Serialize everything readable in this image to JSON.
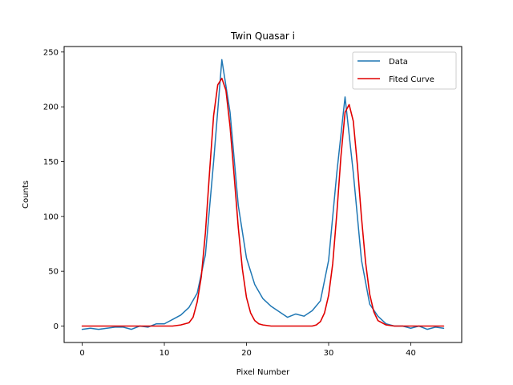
{
  "chart_data": {
    "type": "line",
    "title": "Twin Quasar i",
    "xlabel": "Pixel Number",
    "ylabel": "Counts",
    "xlim": [
      -2.2,
      46.2
    ],
    "ylim": [
      -15,
      255
    ],
    "xticks": [
      0,
      10,
      20,
      30,
      40
    ],
    "yticks": [
      0,
      50,
      100,
      150,
      200,
      250
    ],
    "legend_position": "top-right",
    "grid": false,
    "series": [
      {
        "name": "Data",
        "color": "#1f77b4",
        "x": [
          0,
          1,
          2,
          3,
          4,
          5,
          6,
          7,
          8,
          9,
          10,
          11,
          12,
          13,
          14,
          15,
          16,
          17,
          18,
          19,
          20,
          21,
          22,
          23,
          24,
          25,
          26,
          27,
          28,
          29,
          30,
          31,
          32,
          33,
          34,
          35,
          36,
          37,
          38,
          39,
          40,
          41,
          42,
          43,
          44
        ],
        "y": [
          -3,
          -2,
          -3,
          -2,
          -1,
          -1,
          -3,
          0,
          -1,
          2,
          2,
          6,
          10,
          17,
          30,
          65,
          150,
          243,
          195,
          110,
          62,
          38,
          25,
          18,
          13,
          8,
          11,
          9,
          14,
          23,
          60,
          140,
          209,
          140,
          60,
          20,
          9,
          2,
          0,
          0,
          -2,
          0,
          -3,
          -1,
          -2
        ]
      },
      {
        "name": "Fited Curve",
        "color": "#e00000",
        "x": [
          0,
          1,
          2,
          3,
          4,
          5,
          6,
          7,
          8,
          9,
          10,
          11,
          12,
          13,
          13.5,
          14,
          14.5,
          15,
          15.5,
          16,
          16.5,
          17,
          17.5,
          18,
          18.5,
          19,
          19.5,
          20,
          20.5,
          21,
          21.5,
          22,
          23,
          24,
          25,
          26,
          27,
          28,
          28.5,
          29,
          29.5,
          30,
          30.5,
          31,
          31.5,
          32,
          32.5,
          33,
          33.5,
          34,
          34.5,
          35,
          35.5,
          36,
          37,
          38,
          39,
          40,
          41,
          42,
          43,
          44
        ],
        "y": [
          0,
          0,
          0,
          0,
          0,
          0,
          0,
          0,
          0,
          0,
          0,
          0,
          1,
          3,
          8,
          22,
          45,
          85,
          140,
          192,
          220,
          226,
          215,
          182,
          137,
          90,
          52,
          26,
          12,
          5,
          2,
          1,
          0,
          0,
          0,
          0,
          0,
          0,
          1,
          4,
          12,
          28,
          57,
          103,
          155,
          195,
          202,
          187,
          147,
          99,
          58,
          29,
          13,
          5,
          1,
          0,
          0,
          0,
          0,
          0,
          0,
          0
        ]
      }
    ]
  }
}
